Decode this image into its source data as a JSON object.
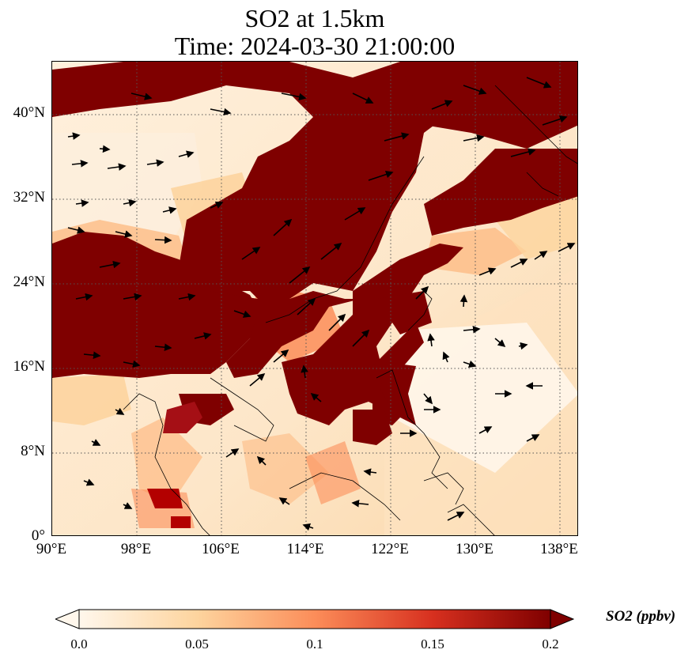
{
  "title": {
    "line1": "SO2 at 1.5km",
    "line2": "Time: 2024-03-30 21:00:00"
  },
  "map": {
    "lon_range": [
      90,
      139.5
    ],
    "lat_range": [
      0,
      45
    ],
    "lat_ticks": [
      "0°",
      "8°N",
      "16°N",
      "24°N",
      "32°N",
      "40°N"
    ],
    "lon_ticks": [
      "90°E",
      "98°E",
      "106°E",
      "114°E",
      "122°E",
      "130°E",
      "138°E"
    ],
    "gridlines": "dotted",
    "coastlines": true,
    "wind_vectors": true
  },
  "colorbar": {
    "label": "SO2 (ppbv)",
    "ticks": [
      "0.0",
      "0.05",
      "0.1",
      "0.15",
      "0.2"
    ],
    "range": [
      0,
      0.2
    ],
    "extend": "both",
    "colormap": "OrRd",
    "colors": [
      "#fff7ec",
      "#fdd49e",
      "#fc8d59",
      "#d7301f",
      "#7f0000"
    ]
  }
}
